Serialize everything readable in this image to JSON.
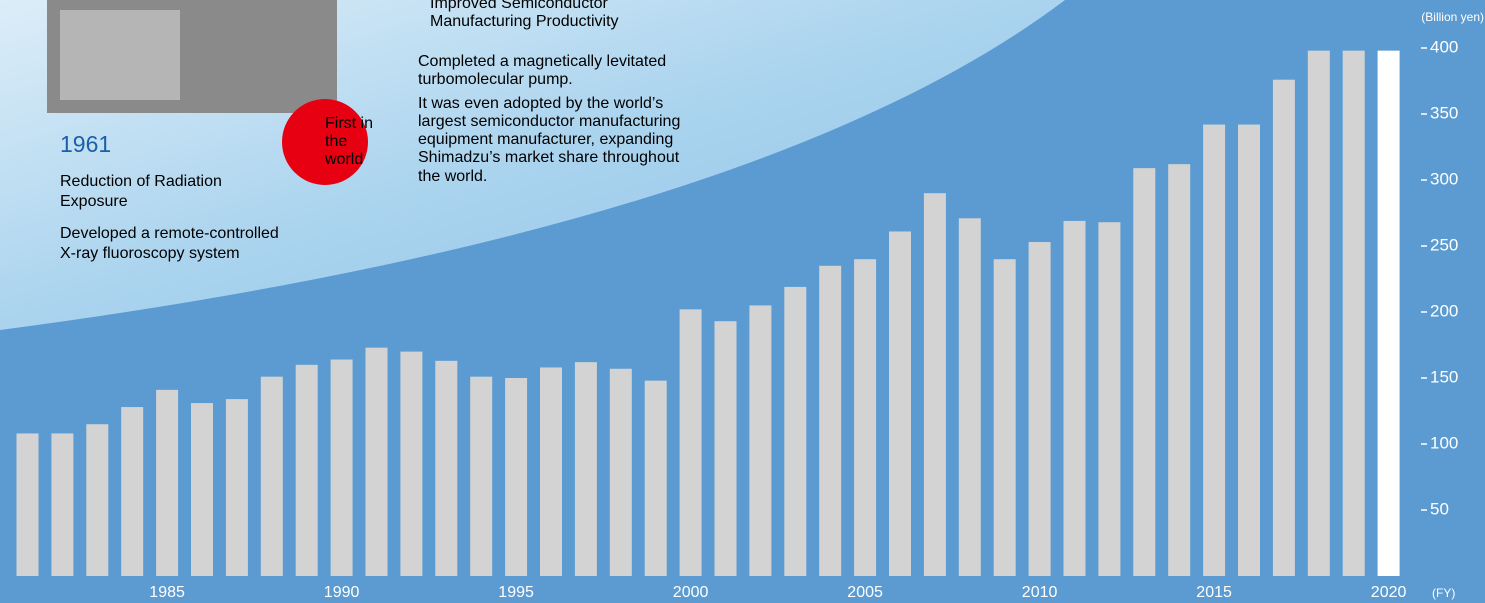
{
  "chart_data": {
    "type": "bar",
    "y_label": "(Billion yen)",
    "x_label": "(FY)",
    "categories": [
      null,
      null,
      null,
      null,
      "1985",
      null,
      null,
      null,
      null,
      "1990",
      null,
      null,
      null,
      null,
      "1995",
      null,
      null,
      null,
      null,
      "2000",
      null,
      null,
      null,
      null,
      "2005",
      null,
      null,
      null,
      null,
      "2010",
      null,
      null,
      null,
      null,
      "2015",
      null,
      null,
      null,
      null,
      "2020"
    ],
    "values": [
      108,
      108,
      115,
      128,
      141,
      131,
      134,
      151,
      160,
      164,
      173,
      170,
      163,
      151,
      150,
      158,
      162,
      157,
      148,
      202,
      193,
      205,
      219,
      235,
      240,
      261,
      290,
      271,
      240,
      253,
      269,
      268,
      309,
      312,
      342,
      342,
      376,
      398,
      398,
      398
    ],
    "colors": [
      "#d3d3d3",
      "#d3d3d3",
      "#d3d3d3",
      "#d3d3d3",
      "#d3d3d3",
      "#d3d3d3",
      "#d3d3d3",
      "#d3d3d3",
      "#d3d3d3",
      "#d3d3d3",
      "#d3d3d3",
      "#d3d3d3",
      "#d3d3d3",
      "#d3d3d3",
      "#d3d3d3",
      "#d3d3d3",
      "#d3d3d3",
      "#d3d3d3",
      "#d3d3d3",
      "#d3d3d3",
      "#d3d3d3",
      "#d3d3d3",
      "#d3d3d3",
      "#d3d3d3",
      "#d3d3d3",
      "#d3d3d3",
      "#d3d3d3",
      "#d3d3d3",
      "#d3d3d3",
      "#d3d3d3",
      "#d3d3d3",
      "#d3d3d3",
      "#d3d3d3",
      "#d3d3d3",
      "#d3d3d3",
      "#d3d3d3",
      "#d3d3d3",
      "#d3d3d3",
      "#d3d3d3",
      "#ffffff"
    ],
    "ylim": [
      0,
      400
    ],
    "yticks": [
      50,
      100,
      150,
      200,
      250,
      300,
      350,
      400
    ]
  },
  "milestones": [
    {
      "badge": [
        "First in",
        "the",
        "world"
      ],
      "year": "1961",
      "title": [
        "Reduction of Radiation",
        "Exposure"
      ],
      "text": [
        "Developed a remote-controlled",
        "X-ray fluoroscopy system"
      ]
    },
    {
      "title": [
        "Improved Semiconductor",
        "Manufacturing Productivity"
      ],
      "text": [
        "Completed a magnetically levitated",
        "turbomolecular pump.",
        "It was even adopted by the world’s",
        "largest semiconductor manufacturing",
        "equipment manufacturer, expanding",
        "Shimadzu’s market share throughout",
        "the world."
      ]
    }
  ]
}
